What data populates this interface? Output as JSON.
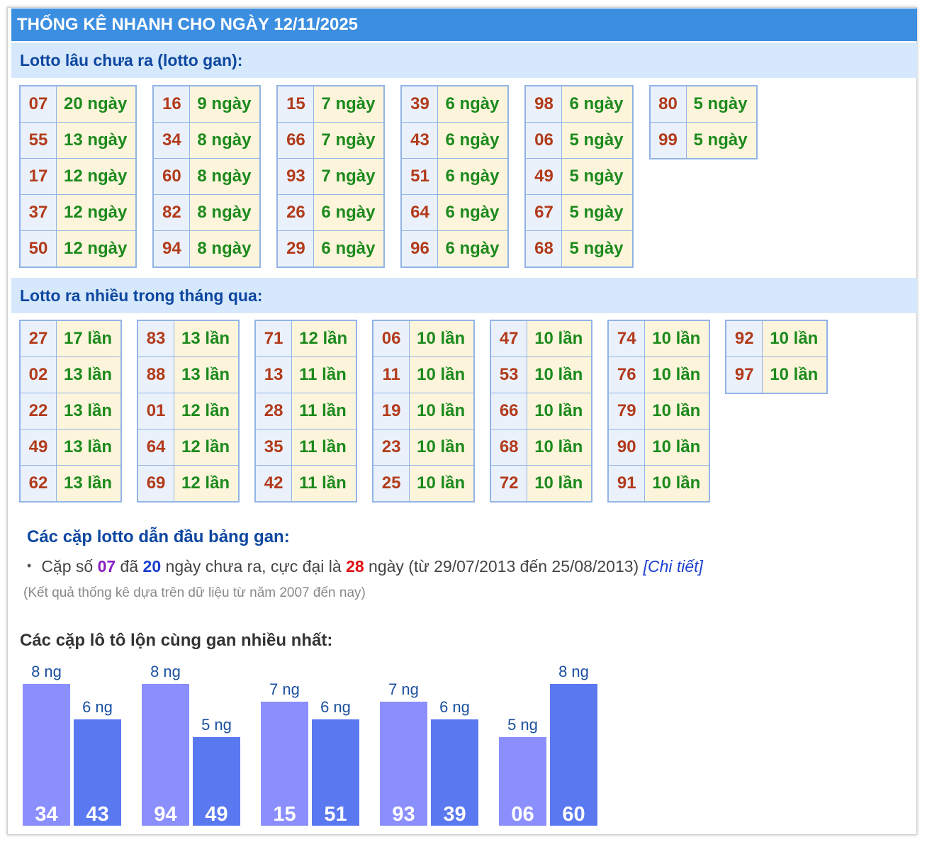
{
  "header": {
    "title": "THỐNG KÊ NHANH CHO NGÀY 12/11/2025"
  },
  "gan": {
    "title": "Lotto lâu chưa ra (lotto gan):",
    "items": [
      {
        "num": "07",
        "count": "20 ngày"
      },
      {
        "num": "55",
        "count": "13 ngày"
      },
      {
        "num": "17",
        "count": "12 ngày"
      },
      {
        "num": "37",
        "count": "12 ngày"
      },
      {
        "num": "50",
        "count": "12 ngày"
      },
      {
        "num": "16",
        "count": "9 ngày"
      },
      {
        "num": "34",
        "count": "8 ngày"
      },
      {
        "num": "60",
        "count": "8 ngày"
      },
      {
        "num": "82",
        "count": "8 ngày"
      },
      {
        "num": "94",
        "count": "8 ngày"
      },
      {
        "num": "15",
        "count": "7 ngày"
      },
      {
        "num": "66",
        "count": "7 ngày"
      },
      {
        "num": "93",
        "count": "7 ngày"
      },
      {
        "num": "26",
        "count": "6 ngày"
      },
      {
        "num": "29",
        "count": "6 ngày"
      },
      {
        "num": "39",
        "count": "6 ngày"
      },
      {
        "num": "43",
        "count": "6 ngày"
      },
      {
        "num": "51",
        "count": "6 ngày"
      },
      {
        "num": "64",
        "count": "6 ngày"
      },
      {
        "num": "96",
        "count": "6 ngày"
      },
      {
        "num": "98",
        "count": "6 ngày"
      },
      {
        "num": "06",
        "count": "5 ngày"
      },
      {
        "num": "49",
        "count": "5 ngày"
      },
      {
        "num": "67",
        "count": "5 ngày"
      },
      {
        "num": "68",
        "count": "5 ngày"
      },
      {
        "num": "80",
        "count": "5 ngày"
      },
      {
        "num": "99",
        "count": "5 ngày"
      }
    ]
  },
  "frequent": {
    "title": "Lotto ra nhiều trong tháng qua:",
    "items": [
      {
        "num": "27",
        "count": "17 lần"
      },
      {
        "num": "02",
        "count": "13 lần"
      },
      {
        "num": "22",
        "count": "13 lần"
      },
      {
        "num": "49",
        "count": "13 lần"
      },
      {
        "num": "62",
        "count": "13 lần"
      },
      {
        "num": "83",
        "count": "13 lần"
      },
      {
        "num": "88",
        "count": "13 lần"
      },
      {
        "num": "01",
        "count": "12 lần"
      },
      {
        "num": "64",
        "count": "12 lần"
      },
      {
        "num": "69",
        "count": "12 lần"
      },
      {
        "num": "71",
        "count": "12 lần"
      },
      {
        "num": "13",
        "count": "11 lần"
      },
      {
        "num": "28",
        "count": "11 lần"
      },
      {
        "num": "35",
        "count": "11 lần"
      },
      {
        "num": "42",
        "count": "11 lần"
      },
      {
        "num": "06",
        "count": "10 lần"
      },
      {
        "num": "11",
        "count": "10 lần"
      },
      {
        "num": "19",
        "count": "10 lần"
      },
      {
        "num": "23",
        "count": "10 lần"
      },
      {
        "num": "25",
        "count": "10 lần"
      },
      {
        "num": "47",
        "count": "10 lần"
      },
      {
        "num": "53",
        "count": "10 lần"
      },
      {
        "num": "66",
        "count": "10 lần"
      },
      {
        "num": "68",
        "count": "10 lần"
      },
      {
        "num": "72",
        "count": "10 lần"
      },
      {
        "num": "74",
        "count": "10 lần"
      },
      {
        "num": "76",
        "count": "10 lần"
      },
      {
        "num": "79",
        "count": "10 lần"
      },
      {
        "num": "90",
        "count": "10 lần"
      },
      {
        "num": "91",
        "count": "10 lần"
      },
      {
        "num": "92",
        "count": "10 lần"
      },
      {
        "num": "97",
        "count": "10 lần"
      }
    ]
  },
  "pairs": {
    "title": "Các cặp lotto dẫn đầu bảng gan:",
    "line": [
      "Cặp số ",
      "07",
      " đã ",
      "20",
      " ngày chưa ra, cực đại là ",
      "28",
      " ngày (từ 29/07/2013 đến 25/08/2013) "
    ],
    "link": "[Chi tiết]",
    "note": "(Kết quả thống kê dựa trên dữ liệu từ năm 2007 đến nay)"
  },
  "chart_data": {
    "type": "bar",
    "title": "Các cặp lô tô lộn cùng gan nhiều nhất:",
    "categories": [
      "34",
      "43",
      "94",
      "49",
      "15",
      "51",
      "93",
      "39",
      "06",
      "60"
    ],
    "values": [
      8,
      6,
      8,
      5,
      7,
      6,
      7,
      6,
      5,
      8
    ],
    "value_labels": [
      "8 ng",
      "6 ng",
      "8 ng",
      "5 ng",
      "7 ng",
      "6 ng",
      "7 ng",
      "6 ng",
      "5 ng",
      "8 ng"
    ],
    "colors": [
      "#8b8ffd",
      "#5a78f0"
    ],
    "ylim": [
      0,
      8
    ]
  }
}
